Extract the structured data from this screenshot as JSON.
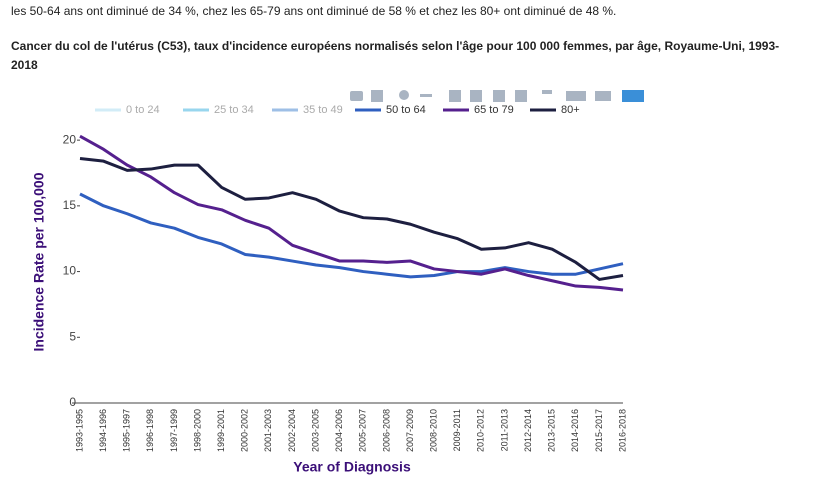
{
  "intro": "les 50-64 ans ont diminué de 34 %, chez les 65-79 ans ont diminué de 58 % et chez les 80+ ont diminué de 48 %.",
  "chart_data": {
    "type": "line",
    "title": "Cancer du col de l'utérus (C53), taux d'incidence européens normalisés selon l'âge pour 100 000 femmes, par âge, Royaume-Uni, 1993-2018",
    "x_label": "Year of Diagnosis",
    "y_label": "Incidence Rate per 100,000",
    "categories": [
      "1993-1995",
      "1994-1996",
      "1995-1997",
      "1996-1998",
      "1997-1999",
      "1998-2000",
      "1999-2001",
      "2000-2002",
      "2001-2003",
      "2002-2004",
      "2003-2005",
      "2004-2006",
      "2005-2007",
      "2006-2008",
      "2007-2009",
      "2008-2010",
      "2009-2011",
      "2010-2012",
      "2011-2013",
      "2012-2014",
      "2013-2015",
      "2014-2016",
      "2015-2017",
      "2016-2018"
    ],
    "ylim": [
      0,
      21
    ],
    "yticks": [
      0,
      5,
      10,
      15,
      20
    ],
    "grid": false,
    "legend": "top",
    "series": [
      {
        "name": "0 to 24",
        "color": "#c8e8f6",
        "visible": false
      },
      {
        "name": "25 to 34",
        "color": "#7fcdea",
        "visible": false
      },
      {
        "name": "35 to 49",
        "color": "#86b0e0",
        "visible": false
      },
      {
        "name": "50 to 64",
        "color": "#2f5fc0",
        "visible": true,
        "values": [
          15.9,
          15.0,
          14.4,
          13.7,
          13.3,
          12.6,
          12.1,
          11.3,
          11.1,
          10.8,
          10.5,
          10.3,
          10.0,
          9.8,
          9.6,
          9.7,
          10.0,
          10.0,
          10.3,
          10.0,
          9.8,
          9.8,
          10.2,
          10.6
        ]
      },
      {
        "name": "65 to 79",
        "color": "#55208e",
        "visible": true,
        "values": [
          20.3,
          19.3,
          18.1,
          17.2,
          16.0,
          15.1,
          14.7,
          13.9,
          13.3,
          12.0,
          11.4,
          10.8,
          10.8,
          10.7,
          10.8,
          10.2,
          10.0,
          9.8,
          10.2,
          9.7,
          9.3,
          8.9,
          8.8,
          8.6
        ]
      },
      {
        "name": "80+",
        "color": "#1d1f40",
        "visible": true,
        "values": [
          18.6,
          18.4,
          17.7,
          17.8,
          18.1,
          18.1,
          16.4,
          15.5,
          15.6,
          16.0,
          15.5,
          14.6,
          14.1,
          14.0,
          13.6,
          13.0,
          12.5,
          11.7,
          11.8,
          12.2,
          11.7,
          10.7,
          9.4,
          9.7
        ]
      }
    ]
  }
}
